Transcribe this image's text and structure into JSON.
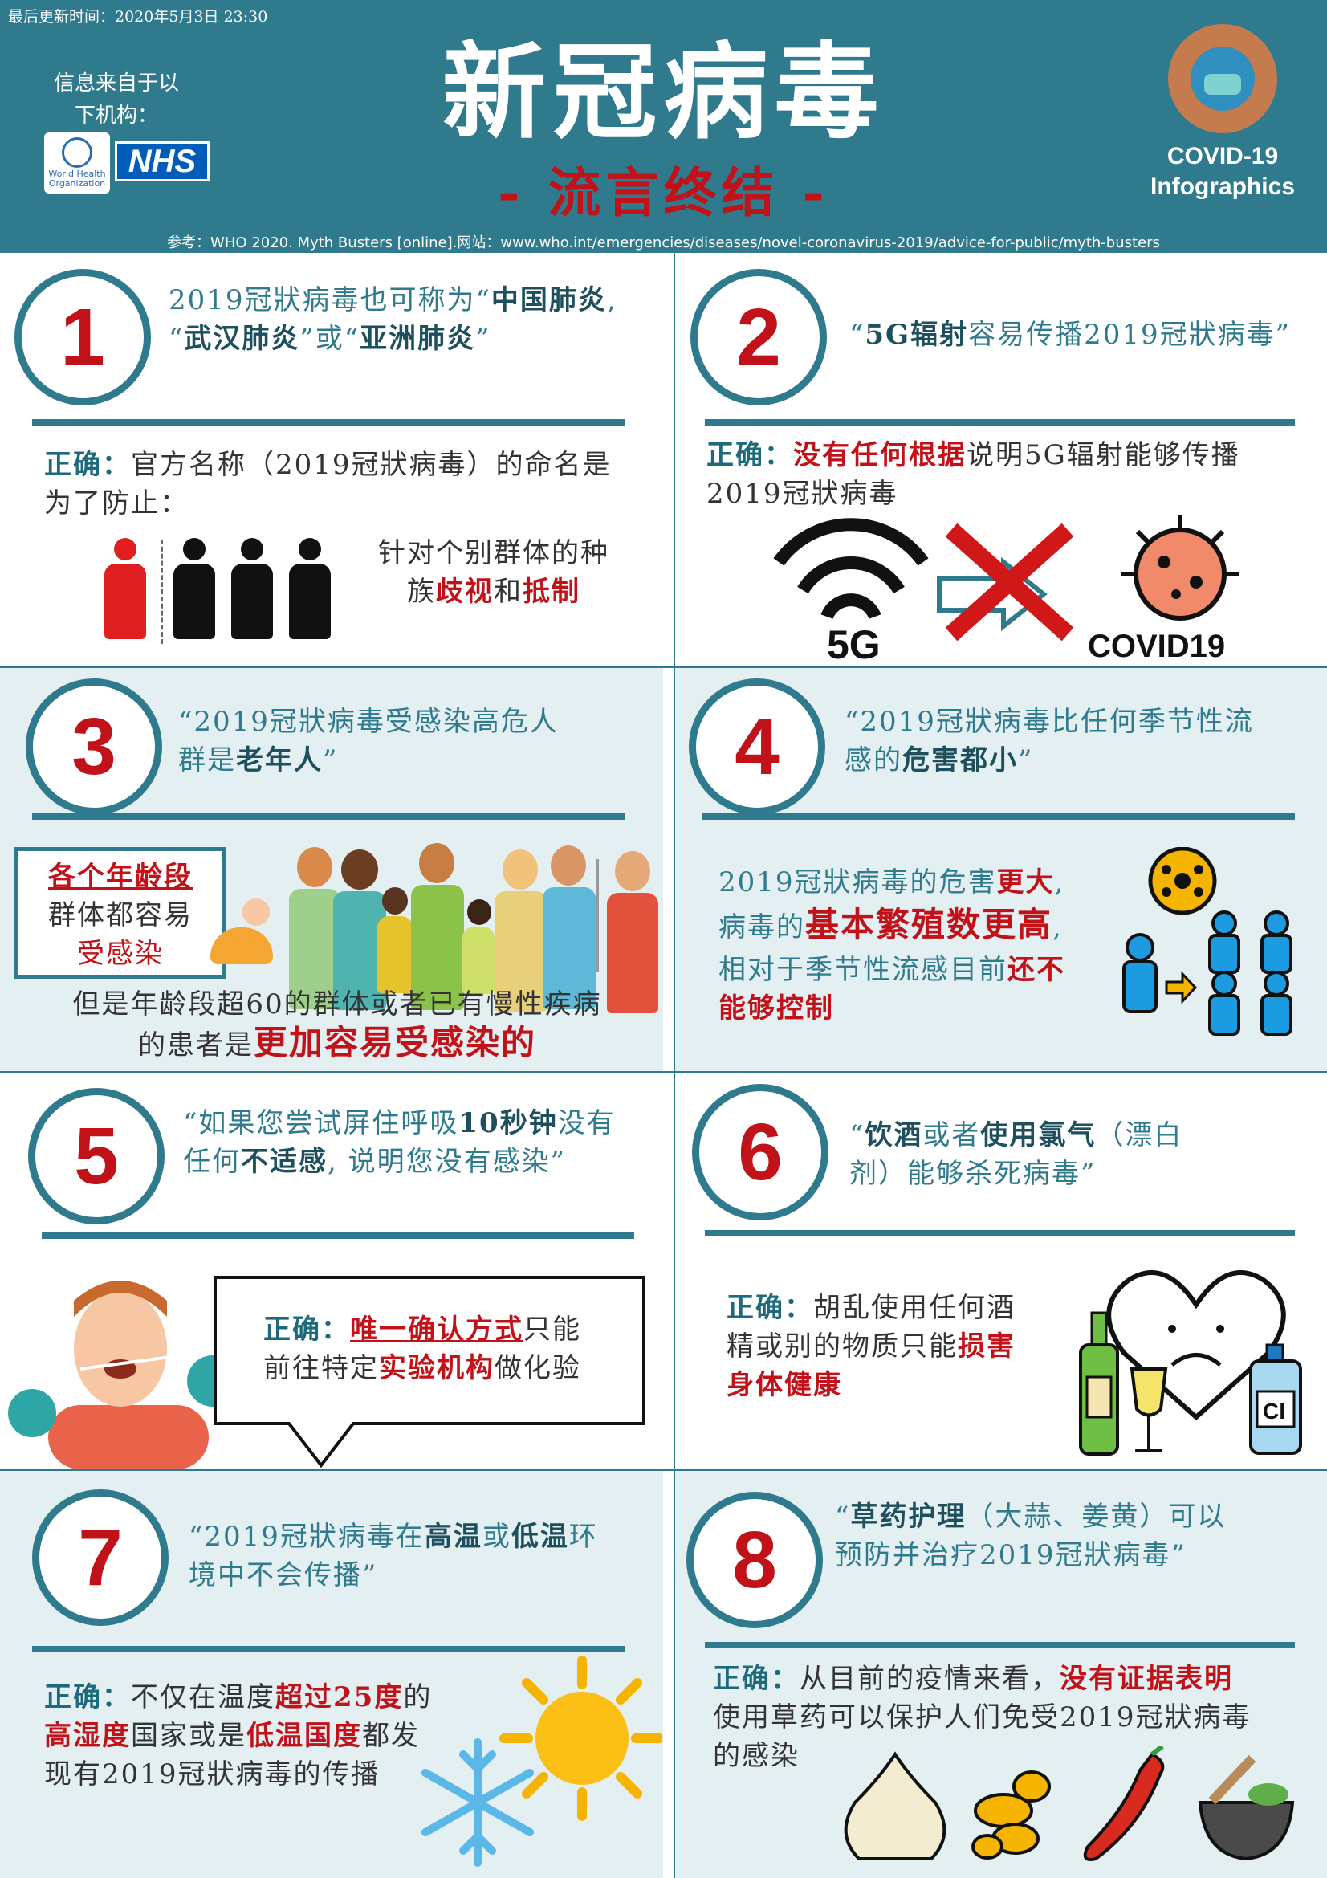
{
  "header": {
    "updated": "最后更新时间：2020年5月3日 23:30",
    "info_from_line1": "信息来自于以",
    "info_from_line2": "下机构：",
    "who_text": "World Health Organization",
    "nhs_text": "NHS",
    "title": "新冠病毒",
    "subtitle": "- 流言终结 -",
    "reference": "参考：WHO 2020. Myth Busters [online].网站：www.who.int/emergencies/diseases/novel-coronavirus-2019/advice-for-public/myth-busters",
    "badge_line1": "COVID-19",
    "badge_line2": "Infographics"
  },
  "panels": {
    "p1": {
      "num": "1",
      "q_line1a": "2019冠狀病毒也可称为“",
      "q_line1b": "中国肺炎",
      "q_line1c": ",",
      "q_line2a": "“",
      "q_line2b": "武汉肺炎",
      "q_line2c": "”或“",
      "q_line2d": "亚洲肺炎",
      "q_line2e": "”",
      "ok": "正确：",
      "t_line1": "官方名称（2019冠狀病毒）的命名是",
      "t_line2": "为了防止：",
      "t_line3": "针对个别群体的种",
      "t_line4a": "族",
      "t_line4b": "歧视",
      "t_line4c": "和",
      "t_line4d": "抵制"
    },
    "p2": {
      "num": "2",
      "q_a": "“",
      "q_b": "5G辐射",
      "q_c": "容易传播2019冠狀病毒”",
      "ok": "正确：",
      "red": "没有任何根据",
      "t_line1": "说明5G辐射能够传播",
      "t_line2": "2019冠狀病毒",
      "label_5g": "5G",
      "label_covid": "COVID19"
    },
    "p3": {
      "num": "3",
      "q_line1": "“2019冠狀病毒受感染高危人",
      "q_line2a": "群是",
      "q_line2b": "老年人",
      "q_line2c": "”",
      "box_line1": "各个年龄段",
      "box_line2": "群体都容易",
      "box_line3": "受感染",
      "t_line1": "但是年龄段超60的群体或者已有慢性疾病",
      "t_line2a": "的患者是",
      "t_line2b": "更加容易受感染的"
    },
    "p4": {
      "num": "4",
      "q_line1": "“2019冠狀病毒比任何季节性流",
      "q_line2a": "感的",
      "q_line2b": "危害都小",
      "q_line2c": "”",
      "t_line1a": "2019冠狀病毒的危害",
      "t_line1b": "更大",
      "t_line1c": ",",
      "t_line2a": "病毒的",
      "t_line2b": "基本繁殖数更高",
      "t_line2c": ",",
      "t_line3a": "相对于季节性流感目前",
      "t_line3b": "还不",
      "t_line4": "能够控制"
    },
    "p5": {
      "num": "5",
      "q_line1a": "“如果您尝试屏住呼吸",
      "q_line1b": "10秒钟",
      "q_line1c": "没有",
      "q_line2a": "任何",
      "q_line2b": "不适感",
      "q_line2c": ", 说明您没有感染”",
      "ok": "正确：",
      "t_line1a": "唯一确认方式",
      "t_line1b": "只能",
      "t_line2a": "前往特定",
      "t_line2b": "实验机构",
      "t_line2c": "做化验"
    },
    "p6": {
      "num": "6",
      "q_line1a": "“",
      "q_line1b": "饮酒",
      "q_line1c": "或者",
      "q_line1d": "使用氯气",
      "q_line1e": "（漂白",
      "q_line2": "剂）能够杀死病毒”",
      "ok": "正确：",
      "t_line1": "胡乱使用任何酒",
      "t_line2a": "精或别的物质只能",
      "t_line2b": "损害",
      "t_line3": "身体健康",
      "bottle_label": "Cl"
    },
    "p7": {
      "num": "7",
      "q_line1a": "“2019冠狀病毒在",
      "q_line1b": "高温",
      "q_line1c": "或",
      "q_line1d": "低温",
      "q_line1e": "环",
      "q_line2": "境中不会传播”",
      "ok": "正确：",
      "t_line1a": "不仅在温度",
      "t_line1b": "超过25度",
      "t_line1c": "的",
      "t_line2a": "高湿度",
      "t_line2b": "国家或是",
      "t_line2c": "低温国度",
      "t_line2d": "都发",
      "t_line3": "现有2019冠狀病毒的传播"
    },
    "p8": {
      "num": "8",
      "q_line1a": "“",
      "q_line1b": "草药护理",
      "q_line1c": "（大蒜、姜黄）可以",
      "q_line2": "预防并治疗2019冠狀病毒”",
      "ok": "正确：",
      "t_line1a": "从目前的疫情来看，",
      "t_line1b": "没有证据表明",
      "t_line2": "使用草药可以保护人们免受2019冠狀病毒",
      "t_line3": "的感染"
    }
  },
  "colors": {
    "teal": "#2f7a8c",
    "red": "#c01218",
    "light_blue": "#e4eff2"
  }
}
